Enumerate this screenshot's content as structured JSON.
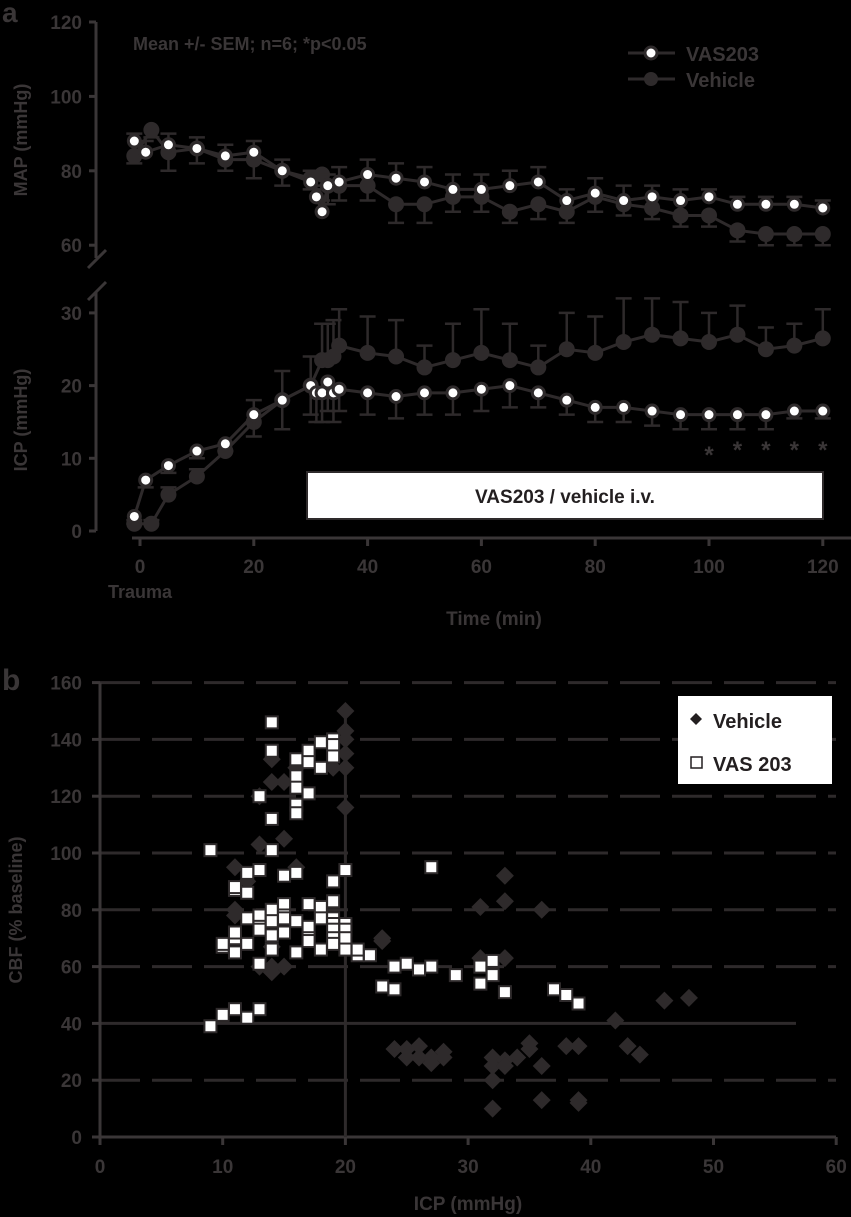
{
  "chart_data": [
    {
      "panel": "a",
      "type": "line",
      "annotation": "Mean +/- SEM; n=6; *p<0.05",
      "xlabel": "Time (min)",
      "x_extra_label": "Trauma",
      "xticks": [
        0,
        20,
        40,
        60,
        80,
        100,
        120
      ],
      "xlim": [
        -2,
        122
      ],
      "legend": [
        {
          "name": "VAS203",
          "marker": "open-circle"
        },
        {
          "name": "Vehicle",
          "marker": "filled-circle"
        }
      ],
      "infusion_box_label": "VAS203 / vehicle i.v.",
      "significance_marker": "*",
      "significant_times": [
        100,
        105,
        110,
        115,
        120
      ],
      "subplots": [
        {
          "ylabel": "MAP (mmHg)",
          "yticks": [
            60,
            80,
            100,
            120
          ],
          "ylim": [
            60,
            120
          ],
          "series": [
            {
              "name": "VAS203",
              "x": [
                -1,
                1,
                5,
                10,
                15,
                20,
                25,
                30,
                31,
                32,
                33,
                35,
                40,
                45,
                50,
                55,
                60,
                65,
                70,
                75,
                80,
                85,
                90,
                95,
                100,
                105,
                110,
                115,
                120
              ],
              "y": [
                88,
                85,
                87,
                86,
                84,
                85,
                80,
                77,
                73,
                69,
                76,
                77,
                79,
                78,
                77,
                75,
                75,
                76,
                77,
                72,
                74,
                72,
                73,
                72,
                73,
                71,
                71,
                71,
                70
              ],
              "err": [
                2,
                3,
                3,
                3,
                3,
                3,
                3,
                3,
                3,
                3,
                3,
                4,
                4,
                4,
                4,
                4,
                4,
                4,
                4,
                3,
                4,
                4,
                3,
                3,
                2,
                2,
                2,
                2,
                2
              ]
            },
            {
              "name": "Vehicle",
              "x": [
                -1,
                2,
                5,
                10,
                15,
                20,
                25,
                30,
                32,
                33,
                35,
                40,
                45,
                50,
                55,
                60,
                65,
                70,
                75,
                80,
                85,
                90,
                95,
                100,
                105,
                110,
                115,
                120
              ],
              "y": [
                84,
                91,
                85,
                86,
                83,
                83,
                80,
                78,
                79,
                76,
                76,
                76,
                71,
                71,
                73,
                73,
                69,
                71,
                69,
                73,
                71,
                70,
                68,
                68,
                64,
                63,
                63,
                63
              ],
              "err": [
                2,
                2,
                5,
                4,
                3,
                5,
                4,
                3,
                4,
                5,
                4,
                4,
                5,
                5,
                4,
                4,
                3,
                4,
                3,
                4,
                3,
                3,
                3,
                3,
                3,
                3,
                3,
                3
              ]
            }
          ]
        },
        {
          "ylabel": "ICP (mmHg)",
          "yticks": [
            0,
            10,
            20,
            30
          ],
          "ylim": [
            0,
            32
          ],
          "series": [
            {
              "name": "VAS203",
              "x": [
                -1,
                1,
                5,
                10,
                15,
                20,
                25,
                30,
                31,
                32,
                33,
                34,
                35,
                40,
                45,
                50,
                55,
                60,
                65,
                70,
                75,
                80,
                85,
                90,
                95,
                100,
                105,
                110,
                115,
                120
              ],
              "y": [
                2,
                7,
                9,
                11,
                12,
                16,
                18,
                20,
                19,
                19,
                20.5,
                19,
                19.5,
                19,
                18.5,
                19,
                19,
                19.5,
                20,
                19,
                18,
                17,
                17,
                16.5,
                16,
                16,
                16,
                16,
                16.5,
                16.5
              ],
              "err": [
                1,
                1,
                1,
                1,
                1,
                3,
                4,
                4,
                4,
                4,
                4,
                4,
                3,
                3,
                3,
                3,
                3,
                3,
                3,
                2,
                2,
                2,
                2,
                2,
                2,
                2,
                2,
                2,
                1,
                1
              ]
            },
            {
              "name": "Vehicle",
              "x": [
                -1,
                2,
                5,
                10,
                15,
                20,
                25,
                30,
                32,
                33,
                34,
                35,
                40,
                45,
                50,
                55,
                60,
                65,
                70,
                75,
                80,
                85,
                90,
                95,
                100,
                105,
                110,
                115,
                120
              ],
              "y": [
                1,
                1,
                5,
                7.5,
                11,
                15,
                18,
                20,
                23.5,
                23.5,
                24,
                25.5,
                24.5,
                24,
                22.5,
                23.5,
                24.5,
                23.5,
                22.5,
                25,
                24.5,
                26,
                27,
                26.5,
                26,
                27,
                25,
                25.5,
                26.5
              ],
              "err": [
                0.5,
                0.5,
                1,
                1,
                1,
                3,
                4,
                4,
                5,
                5,
                5,
                5,
                5,
                5,
                3,
                5,
                6,
                5,
                3,
                5,
                5,
                6,
                5,
                5,
                4,
                4,
                3,
                3,
                4
              ]
            }
          ]
        }
      ]
    },
    {
      "panel": "b",
      "type": "scatter",
      "xlabel": "ICP (mmHg)",
      "ylabel": "CBF (% baseline)",
      "xticks": [
        0,
        10,
        20,
        30,
        40,
        50,
        60
      ],
      "yticks": [
        0,
        20,
        40,
        60,
        80,
        100,
        120,
        140,
        160
      ],
      "xlim": [
        0,
        60
      ],
      "ylim": [
        0,
        160
      ],
      "grid": "dashed horizontal",
      "reference_lines": {
        "x": 20,
        "y": 40
      },
      "legend": [
        {
          "name": "Vehicle",
          "marker": "filled-diamond"
        },
        {
          "name": "VAS 203",
          "marker": "open-square"
        }
      ],
      "series": [
        {
          "name": "Vehicle",
          "points": [
            [
              11,
              95
            ],
            [
              11,
              80
            ],
            [
              11,
              78
            ],
            [
              12,
              90
            ],
            [
              13,
              60
            ],
            [
              13,
              103
            ],
            [
              13,
              120
            ],
            [
              14,
              60
            ],
            [
              14,
              58
            ],
            [
              14,
              67
            ],
            [
              14,
              125
            ],
            [
              14,
              133
            ],
            [
              15,
              60
            ],
            [
              15,
              105
            ],
            [
              15,
              125
            ],
            [
              16,
              130
            ],
            [
              16,
              95
            ],
            [
              19,
              130
            ],
            [
              20,
              150
            ],
            [
              20,
              143
            ],
            [
              20,
              140
            ],
            [
              20,
              135
            ],
            [
              20,
              130
            ],
            [
              20,
              116
            ],
            [
              23,
              69
            ],
            [
              23,
              70
            ],
            [
              24,
              31
            ],
            [
              25,
              31
            ],
            [
              25,
              28
            ],
            [
              26,
              32
            ],
            [
              26,
              28
            ],
            [
              27,
              26
            ],
            [
              27,
              28
            ],
            [
              28,
              28
            ],
            [
              28,
              30
            ],
            [
              31,
              81
            ],
            [
              31,
              63
            ],
            [
              32,
              20
            ],
            [
              32,
              10
            ],
            [
              32,
              25
            ],
            [
              32,
              28
            ],
            [
              33,
              27
            ],
            [
              33,
              25
            ],
            [
              33,
              63
            ],
            [
              33,
              83
            ],
            [
              33,
              92
            ],
            [
              34,
              28
            ],
            [
              35,
              33
            ],
            [
              35,
              31
            ],
            [
              36,
              25
            ],
            [
              36,
              13
            ],
            [
              36,
              80
            ],
            [
              38,
              32
            ],
            [
              39,
              32
            ],
            [
              39,
              13
            ],
            [
              39,
              12
            ],
            [
              42,
              41
            ],
            [
              43,
              32
            ],
            [
              44,
              29
            ],
            [
              46,
              48
            ],
            [
              48,
              49
            ]
          ]
        },
        {
          "name": "VAS 203",
          "points": [
            [
              9,
              39
            ],
            [
              9,
              101
            ],
            [
              10,
              43
            ],
            [
              10,
              67
            ],
            [
              10,
              68
            ],
            [
              11,
              45
            ],
            [
              11,
              65
            ],
            [
              11,
              70
            ],
            [
              11,
              72
            ],
            [
              11,
              87
            ],
            [
              11,
              88
            ],
            [
              12,
              42
            ],
            [
              12,
              93
            ],
            [
              12,
              86
            ],
            [
              12,
              77
            ],
            [
              12,
              68
            ],
            [
              13,
              45
            ],
            [
              13,
              120
            ],
            [
              13,
              78
            ],
            [
              13,
              74
            ],
            [
              13,
              73
            ],
            [
              13,
              61
            ],
            [
              13,
              94
            ],
            [
              14,
              146
            ],
            [
              14,
              136
            ],
            [
              14,
              112
            ],
            [
              14,
              101
            ],
            [
              14,
              80
            ],
            [
              14,
              76
            ],
            [
              14,
              71
            ],
            [
              14,
              66
            ],
            [
              15,
              92
            ],
            [
              15,
              82
            ],
            [
              15,
              78
            ],
            [
              15,
              77
            ],
            [
              15,
              72
            ],
            [
              16,
              133
            ],
            [
              16,
              127
            ],
            [
              16,
              123
            ],
            [
              16,
              117
            ],
            [
              16,
              114
            ],
            [
              16,
              93
            ],
            [
              16,
              76
            ],
            [
              16,
              65
            ],
            [
              17,
              136
            ],
            [
              17,
              132
            ],
            [
              17,
              121
            ],
            [
              17,
              82
            ],
            [
              17,
              74
            ],
            [
              17,
              70
            ],
            [
              17,
              69
            ],
            [
              18,
              139
            ],
            [
              18,
              130
            ],
            [
              18,
              81
            ],
            [
              18,
              77
            ],
            [
              18,
              66
            ],
            [
              19,
              140
            ],
            [
              19,
              138
            ],
            [
              19,
              134
            ],
            [
              19,
              90
            ],
            [
              19,
              83
            ],
            [
              19,
              77
            ],
            [
              19,
              75
            ],
            [
              19,
              73
            ],
            [
              19,
              70
            ],
            [
              19,
              68
            ],
            [
              20,
              94
            ],
            [
              20,
              75
            ],
            [
              20,
              73
            ],
            [
              20,
              70
            ],
            [
              20,
              66
            ],
            [
              21,
              64
            ],
            [
              21,
              66
            ],
            [
              22,
              64
            ],
            [
              23,
              53
            ],
            [
              24,
              52
            ],
            [
              24,
              60
            ],
            [
              25,
              61
            ],
            [
              26,
              59
            ],
            [
              27,
              60
            ],
            [
              27,
              95
            ],
            [
              29,
              57
            ],
            [
              31,
              54
            ],
            [
              31,
              60
            ],
            [
              32,
              62
            ],
            [
              32,
              57
            ],
            [
              33,
              51
            ],
            [
              37,
              52
            ],
            [
              38,
              50
            ],
            [
              39,
              47
            ]
          ]
        }
      ]
    }
  ],
  "labels": {
    "panel_a": "a",
    "panel_b": "b"
  }
}
